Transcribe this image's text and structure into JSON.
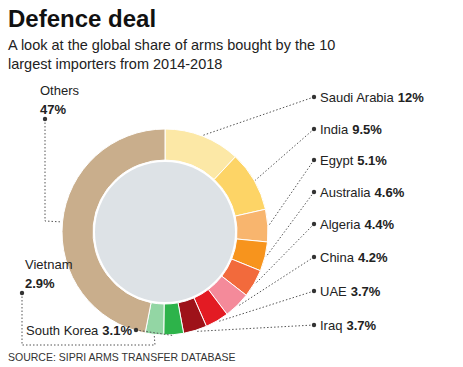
{
  "chart_data": {
    "type": "pie",
    "title": "Defence deal",
    "subtitle": "A look at the global share of arms bought by the 10 largest importers from 2014-2018",
    "source": "SOURCE: SIPRI ARMS TRANSFER DATABASE",
    "categories": [
      "Saudi Arabia",
      "India",
      "Egypt",
      "Australia",
      "Algeria",
      "China",
      "UAE",
      "Iraq",
      "South Korea",
      "Vietnam",
      "Others"
    ],
    "values": [
      12,
      9.5,
      5.1,
      4.6,
      4.4,
      4.2,
      3.7,
      3.7,
      3.1,
      2.9,
      47
    ],
    "value_labels": [
      "12%",
      "9.5%",
      "5.1%",
      "4.6%",
      "4.4%",
      "4.2%",
      "3.7%",
      "3.7%",
      "3.1%",
      "2.9%",
      "47%"
    ],
    "colors": [
      "#fce8a6",
      "#fdd466",
      "#f8b56e",
      "#f7941d",
      "#f26a3c",
      "#f48a9a",
      "#e31b23",
      "#9e1219",
      "#2db34a",
      "#93d6a4",
      "#c9ae8c",
      "#a8773f"
    ],
    "data_labels": true
  }
}
